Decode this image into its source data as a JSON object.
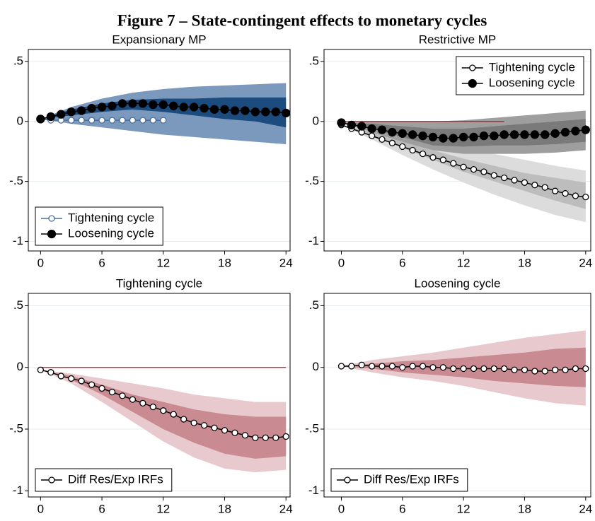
{
  "figure_title": "Figure 7 – State-contingent effects to monetary cycles",
  "chart_data": [
    {
      "type": "line",
      "title": "Expansionary MP",
      "legend": "lower left",
      "x": [
        0,
        1,
        2,
        3,
        4,
        5,
        6,
        7,
        8,
        9,
        10,
        11,
        12,
        13,
        14,
        15,
        16,
        17,
        18,
        19,
        20,
        21,
        22,
        23,
        24
      ],
      "xlim": [
        -1.2,
        24.4
      ],
      "xticks": [
        0,
        6,
        12,
        18,
        24
      ],
      "ylim": [
        -1.08,
        0.6
      ],
      "yticks": [
        {
          "value": 0.5,
          "label": ".5"
        },
        0,
        {
          "value": -0.5,
          "label": "-.5"
        },
        -1
      ],
      "grid": true,
      "bands": [
        {
          "color": "#7b98bd",
          "x": [
            0,
            3,
            6,
            9,
            12,
            15,
            18,
            21,
            24
          ],
          "upper": [
            0.02,
            0.12,
            0.19,
            0.24,
            0.27,
            0.29,
            0.3,
            0.31,
            0.32
          ],
          "lower": [
            0.02,
            -0.02,
            -0.05,
            -0.08,
            -0.11,
            -0.13,
            -0.15,
            -0.17,
            -0.19
          ]
        },
        {
          "color": "#1c4b7d",
          "x": [
            0,
            3,
            6,
            9,
            12,
            15,
            18,
            21,
            24
          ],
          "upper": [
            0.02,
            0.1,
            0.15,
            0.18,
            0.19,
            0.19,
            0.2,
            0.2,
            0.2
          ],
          "lower": [
            0.02,
            0.05,
            0.08,
            0.1,
            0.08,
            0.05,
            0.02,
            0.0,
            -0.05
          ]
        }
      ],
      "series": [
        {
          "name": "Tightening cycle",
          "color": "#4a6e9a",
          "marker": "hollow",
          "values": [
            0.02,
            0.01,
            0.01,
            0.01,
            0.01,
            0.01,
            0.01,
            0.01,
            0.01,
            0.01,
            0.01,
            0.01,
            0.01,
            null,
            null,
            null,
            null,
            null,
            null,
            null,
            null,
            null,
            null,
            null,
            null
          ]
        },
        {
          "name": "Loosening cycle",
          "color": "#000000",
          "marker": "filled",
          "values": [
            0.02,
            0.04,
            0.06,
            0.08,
            0.09,
            0.11,
            0.12,
            0.13,
            0.15,
            0.15,
            0.15,
            0.14,
            0.14,
            0.13,
            0.12,
            0.12,
            0.11,
            0.1,
            0.1,
            0.09,
            0.09,
            0.08,
            0.08,
            0.08,
            0.07
          ]
        }
      ]
    },
    {
      "type": "line",
      "title": "Restrictive MP",
      "legend": "upper right",
      "x": [
        0,
        1,
        2,
        3,
        4,
        5,
        6,
        7,
        8,
        9,
        10,
        11,
        12,
        13,
        14,
        15,
        16,
        17,
        18,
        19,
        20,
        21,
        22,
        23,
        24
      ],
      "xlim": [
        -1.7,
        24.5
      ],
      "xticks": [
        0,
        6,
        12,
        18,
        24
      ],
      "ylim": [
        -1.08,
        0.6
      ],
      "yticks": [
        {
          "value": 0.5,
          "label": ".5"
        },
        0,
        {
          "value": -0.5,
          "label": "-.5"
        },
        -1
      ],
      "grid": true,
      "reference_line": {
        "y": 0,
        "x": [
          0,
          16
        ],
        "color": "#c0161a"
      },
      "bands": [
        {
          "color": "#dcdcdc",
          "x": [
            0,
            3,
            6,
            9,
            12,
            15,
            18,
            21,
            24
          ],
          "upper": [
            -0.03,
            -0.06,
            -0.11,
            -0.17,
            -0.22,
            -0.27,
            -0.32,
            -0.37,
            -0.41
          ],
          "lower": [
            -0.03,
            -0.15,
            -0.28,
            -0.4,
            -0.51,
            -0.61,
            -0.7,
            -0.78,
            -0.84
          ]
        },
        {
          "color": "#bdbdbd",
          "x": [
            0,
            3,
            6,
            9,
            12,
            15,
            18,
            21,
            24
          ],
          "upper": [
            -0.03,
            -0.09,
            -0.16,
            -0.24,
            -0.31,
            -0.37,
            -0.43,
            -0.47,
            -0.51
          ],
          "lower": [
            -0.03,
            -0.12,
            -0.22,
            -0.32,
            -0.42,
            -0.5,
            -0.58,
            -0.66,
            -0.73
          ]
        },
        {
          "color": "#9e9e9e",
          "x": [
            0,
            3,
            6,
            9,
            12,
            15,
            18,
            21,
            24
          ],
          "upper": [
            -0.01,
            0.0,
            0.0,
            0.0,
            0.01,
            0.03,
            0.05,
            0.07,
            0.09
          ],
          "lower": [
            -0.01,
            -0.09,
            -0.17,
            -0.24,
            -0.27,
            -0.27,
            -0.27,
            -0.26,
            -0.24
          ]
        },
        {
          "color": "#7a7a7a",
          "x": [
            0,
            3,
            6,
            9,
            12,
            15,
            18,
            21,
            24
          ],
          "upper": [
            -0.01,
            -0.02,
            -0.04,
            -0.06,
            -0.06,
            -0.04,
            -0.02,
            0.0,
            0.02
          ],
          "lower": [
            -0.01,
            -0.06,
            -0.13,
            -0.2,
            -0.21,
            -0.2,
            -0.2,
            -0.19,
            -0.17
          ]
        }
      ],
      "series": [
        {
          "name": "Tightening cycle",
          "color": "#000000",
          "marker": "hollow",
          "values": [
            -0.03,
            -0.06,
            -0.09,
            -0.12,
            -0.15,
            -0.18,
            -0.21,
            -0.24,
            -0.27,
            -0.3,
            -0.32,
            -0.35,
            -0.38,
            -0.4,
            -0.42,
            -0.45,
            -0.47,
            -0.49,
            -0.51,
            -0.53,
            -0.55,
            -0.58,
            -0.6,
            -0.62,
            -0.63
          ]
        },
        {
          "name": "Loosening cycle",
          "color": "#000000",
          "marker": "filled",
          "values": [
            -0.01,
            -0.03,
            -0.04,
            -0.06,
            -0.07,
            -0.09,
            -0.1,
            -0.11,
            -0.12,
            -0.13,
            -0.14,
            -0.14,
            -0.13,
            -0.13,
            -0.12,
            -0.12,
            -0.11,
            -0.11,
            -0.11,
            -0.11,
            -0.11,
            -0.1,
            -0.09,
            -0.08,
            -0.07
          ]
        }
      ]
    },
    {
      "type": "line",
      "title": "Tightening cycle",
      "legend": "lower left",
      "x": [
        0,
        1,
        2,
        3,
        4,
        5,
        6,
        7,
        8,
        9,
        10,
        11,
        12,
        13,
        14,
        15,
        16,
        17,
        18,
        19,
        20,
        21,
        22,
        23,
        24
      ],
      "xlim": [
        -1.2,
        24.4
      ],
      "xticks": [
        0,
        6,
        12,
        18,
        24
      ],
      "ylim": [
        -1.05,
        0.6
      ],
      "yticks": [
        {
          "value": 0.5,
          "label": ".5"
        },
        0,
        {
          "value": -0.5,
          "label": "-.5"
        },
        -1
      ],
      "grid": true,
      "reference_line": {
        "y": 0,
        "x": [
          0,
          24
        ],
        "color": "#c0161a"
      },
      "bands": [
        {
          "color": "#e8c9cd",
          "x": [
            0,
            3,
            6,
            9,
            12,
            15,
            18,
            21,
            24
          ],
          "upper": [
            -0.02,
            -0.05,
            -0.09,
            -0.13,
            -0.17,
            -0.22,
            -0.25,
            -0.28,
            -0.28
          ],
          "lower": [
            -0.02,
            -0.13,
            -0.28,
            -0.44,
            -0.6,
            -0.73,
            -0.82,
            -0.85,
            -0.83
          ]
        },
        {
          "color": "#c98a92",
          "x": [
            0,
            3,
            6,
            9,
            12,
            15,
            18,
            21,
            24
          ],
          "upper": [
            -0.02,
            -0.07,
            -0.14,
            -0.22,
            -0.28,
            -0.34,
            -0.38,
            -0.4,
            -0.4
          ],
          "lower": [
            -0.02,
            -0.1,
            -0.22,
            -0.36,
            -0.5,
            -0.61,
            -0.7,
            -0.74,
            -0.72
          ]
        }
      ],
      "series": [
        {
          "name": "Diff Res/Exp IRFs",
          "color": "#000000",
          "marker": "hollow",
          "values": [
            -0.02,
            -0.04,
            -0.07,
            -0.09,
            -0.11,
            -0.14,
            -0.17,
            -0.2,
            -0.23,
            -0.26,
            -0.29,
            -0.32,
            -0.35,
            -0.38,
            -0.42,
            -0.45,
            -0.47,
            -0.49,
            -0.51,
            -0.53,
            -0.55,
            -0.57,
            -0.57,
            -0.57,
            -0.56
          ]
        }
      ]
    },
    {
      "type": "line",
      "title": "Loosening cycle",
      "legend": "lower left",
      "x": [
        0,
        1,
        2,
        3,
        4,
        5,
        6,
        7,
        8,
        9,
        10,
        11,
        12,
        13,
        14,
        15,
        16,
        17,
        18,
        19,
        20,
        21,
        22,
        23,
        24
      ],
      "xlim": [
        -1.7,
        24.5
      ],
      "xticks": [
        0,
        6,
        12,
        18,
        24
      ],
      "ylim": [
        -1.05,
        0.6
      ],
      "yticks": [
        {
          "value": 0.5,
          "label": ".5"
        },
        0,
        {
          "value": -0.5,
          "label": "-.5"
        },
        -1
      ],
      "grid": true,
      "bands": [
        {
          "color": "#e8c9cd",
          "x": [
            0,
            3,
            6,
            9,
            12,
            15,
            18,
            21,
            24
          ],
          "upper": [
            0.01,
            0.06,
            0.09,
            0.12,
            0.16,
            0.2,
            0.24,
            0.27,
            0.3
          ],
          "lower": [
            0.01,
            -0.04,
            -0.08,
            -0.11,
            -0.15,
            -0.2,
            -0.25,
            -0.29,
            -0.31
          ]
        },
        {
          "color": "#c98a92",
          "x": [
            0,
            3,
            6,
            9,
            12,
            15,
            18,
            21,
            24
          ],
          "upper": [
            0.01,
            0.03,
            0.05,
            0.06,
            0.08,
            0.1,
            0.12,
            0.15,
            0.16
          ],
          "lower": [
            0.01,
            -0.01,
            -0.04,
            -0.06,
            -0.08,
            -0.11,
            -0.13,
            -0.15,
            -0.16
          ]
        }
      ],
      "series": [
        {
          "name": "Diff Res/Exp IRFs",
          "color": "#000000",
          "marker": "hollow",
          "values": [
            0.01,
            0.01,
            0.02,
            0.01,
            0.01,
            0.01,
            0.0,
            0.01,
            0.01,
            0.0,
            0.0,
            -0.01,
            -0.01,
            -0.01,
            -0.01,
            -0.01,
            -0.01,
            -0.02,
            -0.02,
            -0.03,
            -0.03,
            -0.02,
            -0.02,
            -0.01,
            -0.01
          ]
        }
      ]
    }
  ]
}
